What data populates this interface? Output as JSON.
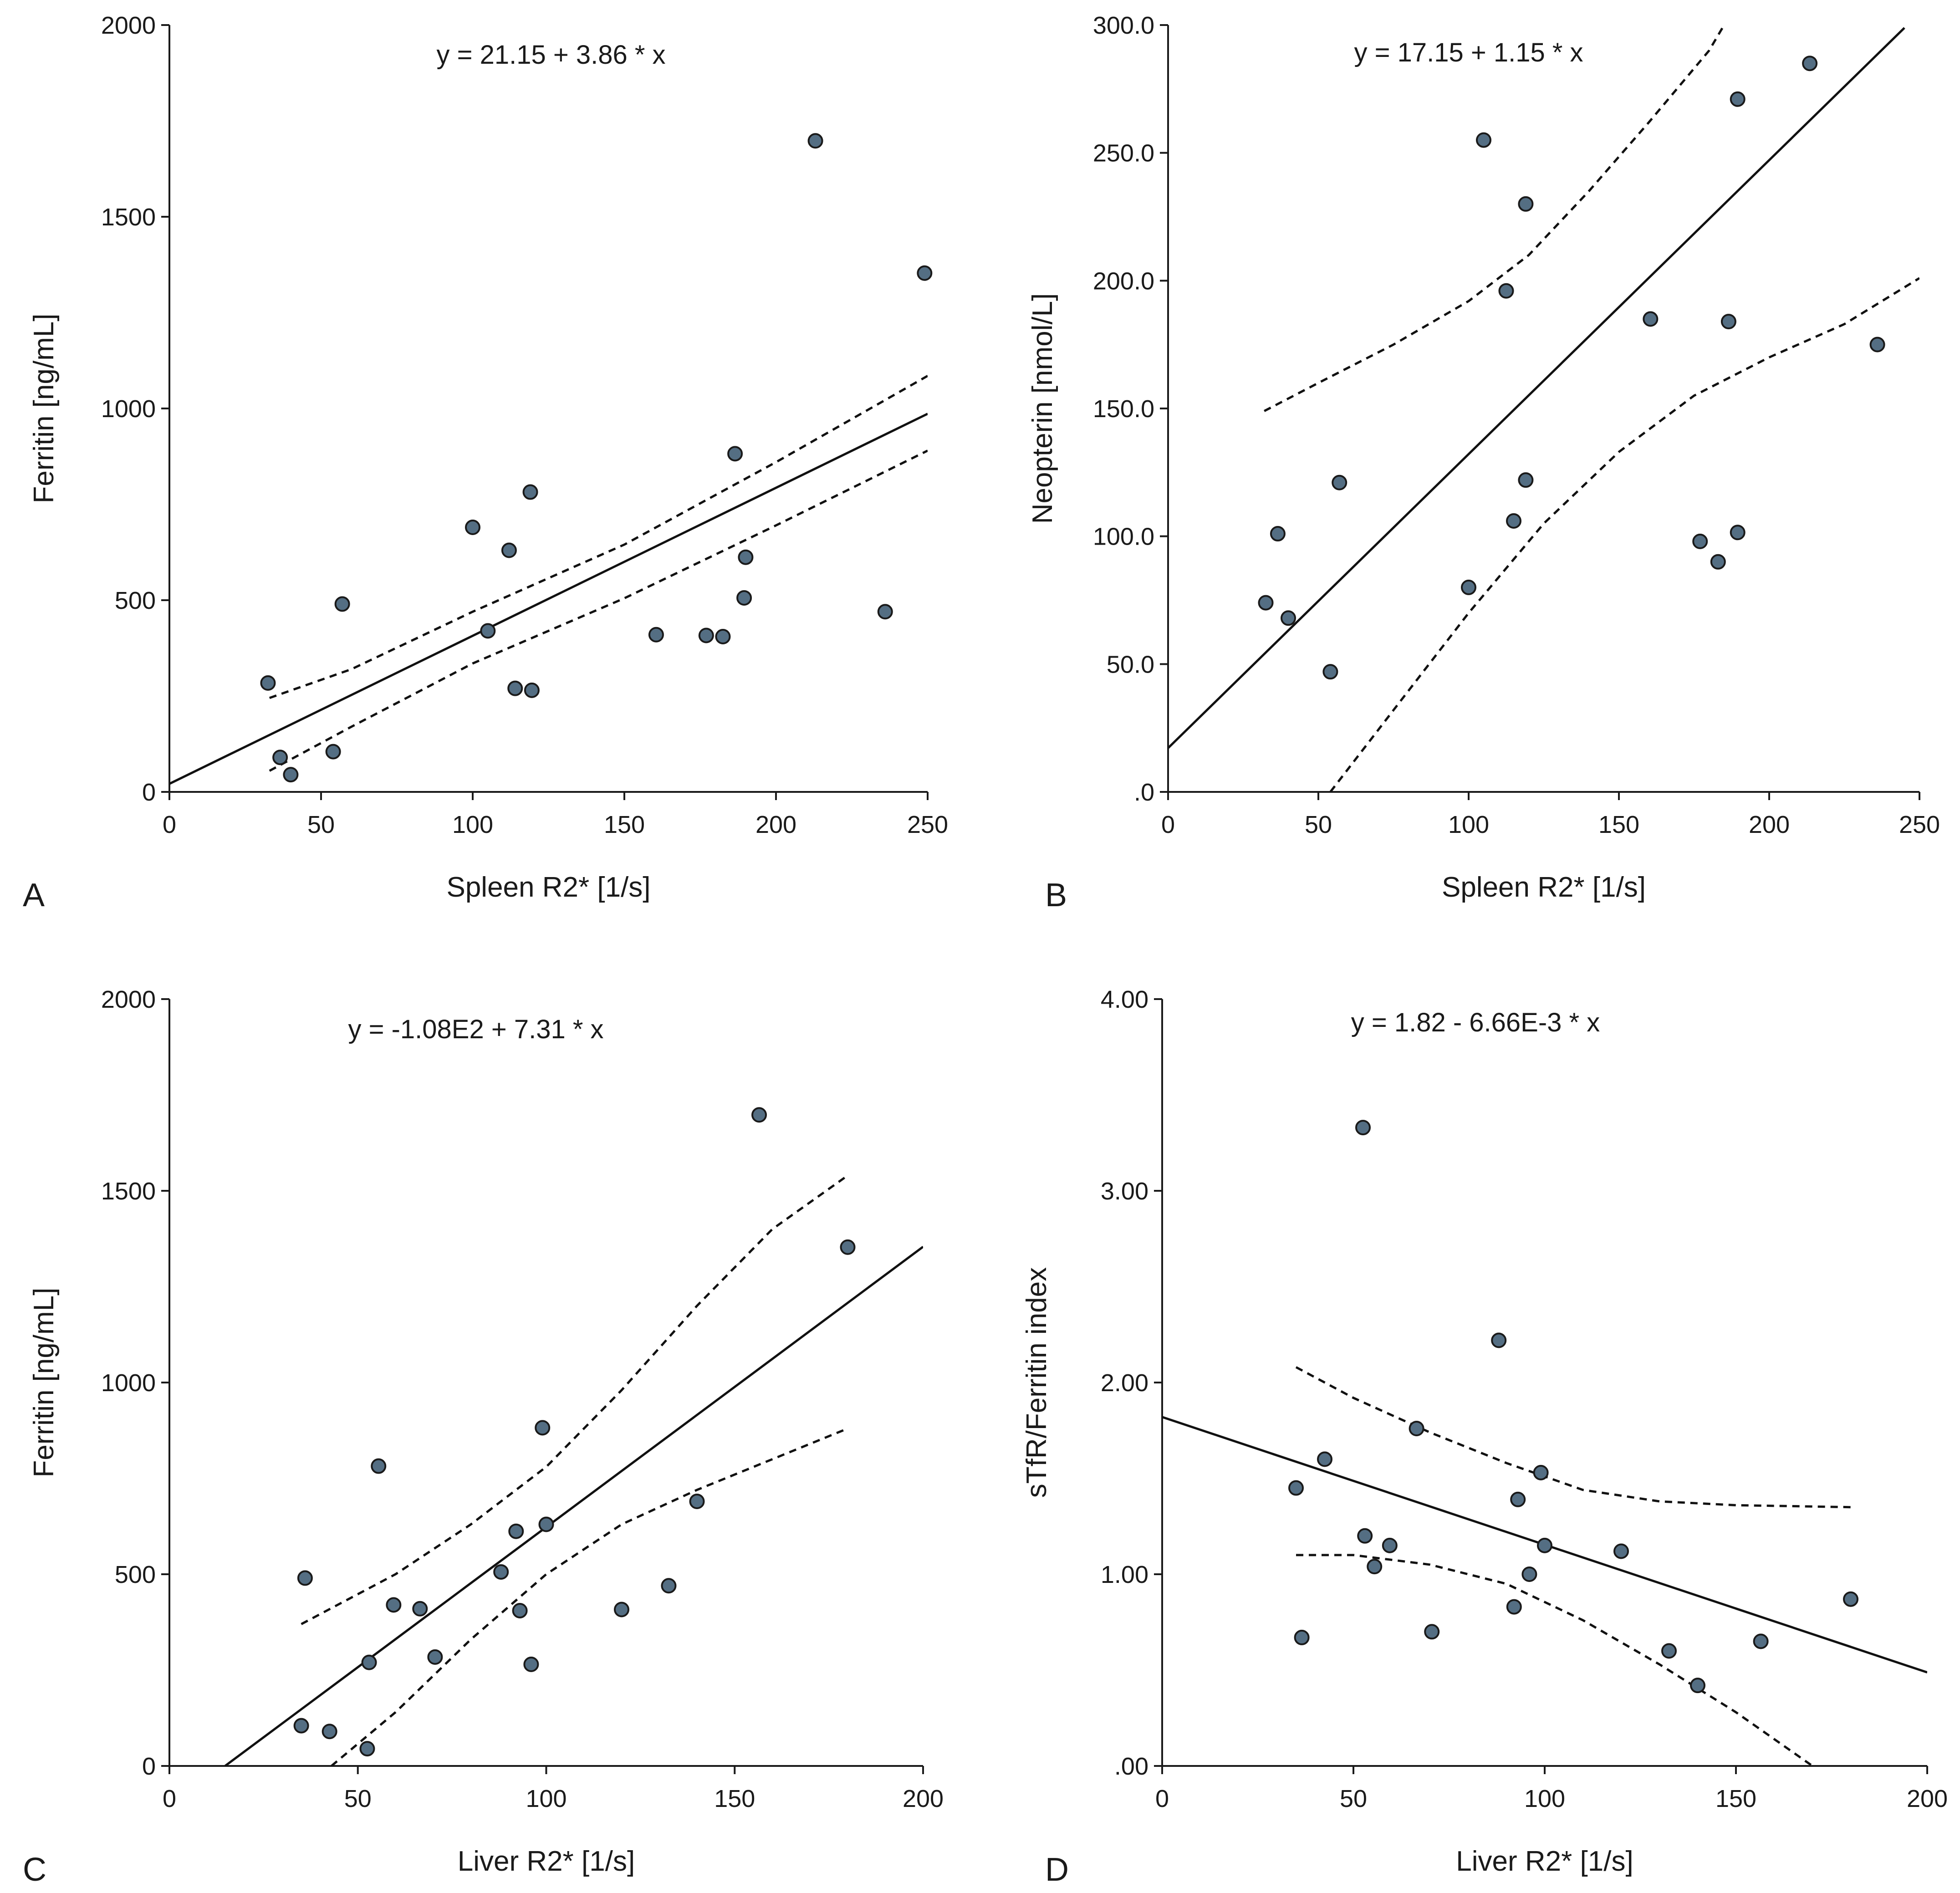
{
  "chart_data": [
    {
      "type": "scatter",
      "panel_letter": "A",
      "equation": "y = 21.15 + 3.86 * x",
      "xlabel": "Spleen R2* [1/s]",
      "ylabel": "Ferritin [ng/mL]",
      "xlim": [
        0,
        250
      ],
      "ylim": [
        0,
        2000
      ],
      "x_ticks": [
        0,
        50,
        100,
        150,
        200,
        250
      ],
      "x_tick_labels": [
        "0",
        "50",
        "100",
        "150",
        "200",
        "250"
      ],
      "y_ticks": [
        0,
        500,
        1000,
        1500,
        2000
      ],
      "y_tick_labels": [
        "0",
        "500",
        "1000",
        "1500",
        "2000"
      ],
      "grid": false,
      "point_color": "#546e83",
      "points": [
        [
          32.5,
          284
        ],
        [
          36.5,
          90
        ],
        [
          40,
          45
        ],
        [
          54,
          105
        ],
        [
          57,
          490
        ],
        [
          100,
          690
        ],
        [
          105,
          420
        ],
        [
          112,
          630
        ],
        [
          114,
          270
        ],
        [
          119,
          782
        ],
        [
          119.5,
          265
        ],
        [
          160.5,
          410
        ],
        [
          177,
          408
        ],
        [
          182.5,
          405
        ],
        [
          186.5,
          882
        ],
        [
          189.5,
          506
        ],
        [
          190,
          612
        ],
        [
          213,
          1698
        ],
        [
          236,
          470
        ],
        [
          249,
          1353
        ]
      ],
      "fit": {
        "intercept": 21.15,
        "slope": 3.86,
        "x_range": [
          0,
          250
        ]
      },
      "ci_lower": [
        [
          33,
          55
        ],
        [
          60,
          170
        ],
        [
          100,
          335
        ],
        [
          150,
          505
        ],
        [
          200,
          695
        ],
        [
          250,
          890
        ]
      ],
      "ci_upper": [
        [
          33,
          245
        ],
        [
          60,
          320
        ],
        [
          100,
          470
        ],
        [
          150,
          645
        ],
        [
          200,
          860
        ],
        [
          250,
          1085
        ]
      ]
    },
    {
      "type": "scatter",
      "panel_letter": "B",
      "equation": "y = 17.15 + 1.15 * x",
      "xlabel": "Spleen R2* [1/s]",
      "ylabel": "Neopterin [nmol/L]",
      "xlim": [
        0,
        250
      ],
      "ylim": [
        0,
        300
      ],
      "x_ticks": [
        0,
        50,
        100,
        150,
        200,
        250
      ],
      "x_tick_labels": [
        "0",
        "50",
        "100",
        "150",
        "200",
        "250"
      ],
      "y_ticks": [
        0,
        50,
        100,
        150,
        200,
        250,
        300
      ],
      "y_tick_labels": [
        ".0",
        "50.0",
        "100.0",
        "150.0",
        "200.0",
        "250.0",
        "300.0"
      ],
      "grid": false,
      "point_color": "#546e83",
      "points": [
        [
          32.5,
          74
        ],
        [
          36.5,
          101
        ],
        [
          40,
          68
        ],
        [
          54,
          47
        ],
        [
          57,
          121
        ],
        [
          100,
          80
        ],
        [
          105,
          255
        ],
        [
          112.5,
          196
        ],
        [
          115,
          106
        ],
        [
          119,
          122
        ],
        [
          119,
          230
        ],
        [
          160.5,
          185
        ],
        [
          177,
          98
        ],
        [
          183,
          90
        ],
        [
          186.5,
          184
        ],
        [
          189.5,
          101.5
        ],
        [
          189.5,
          271
        ],
        [
          213.5,
          285
        ],
        [
          236,
          175
        ]
      ],
      "fit": {
        "intercept": 17.15,
        "slope": 1.15,
        "x_range": [
          0,
          245
        ]
      },
      "ci_lower": [
        [
          54,
          0
        ],
        [
          75,
          32
        ],
        [
          100,
          70
        ],
        [
          125,
          105
        ],
        [
          150,
          133
        ],
        [
          175,
          155
        ],
        [
          200,
          170
        ],
        [
          225,
          183
        ],
        [
          250,
          201
        ]
      ],
      "ci_upper": [
        [
          32,
          149
        ],
        [
          50,
          160
        ],
        [
          75,
          175
        ],
        [
          100,
          192
        ],
        [
          120,
          210
        ],
        [
          140,
          235
        ],
        [
          160,
          262
        ],
        [
          180,
          290
        ],
        [
          185,
          300
        ]
      ]
    },
    {
      "type": "scatter",
      "panel_letter": "C",
      "equation": "y = -1.08E2 + 7.31 * x",
      "xlabel": "Liver R2* [1/s]",
      "ylabel": "Ferritin [ng/mL]",
      "xlim": [
        0,
        200
      ],
      "ylim": [
        0,
        2000
      ],
      "x_ticks": [
        0,
        50,
        100,
        150,
        200
      ],
      "x_tick_labels": [
        "0",
        "50",
        "100",
        "150",
        "200"
      ],
      "y_ticks": [
        0,
        500,
        1000,
        1500,
        2000
      ],
      "y_tick_labels": [
        "0",
        "500",
        "1000",
        "1500",
        "2000"
      ],
      "grid": false,
      "point_color": "#546e83",
      "points": [
        [
          35,
          105
        ],
        [
          36,
          490
        ],
        [
          42.5,
          90
        ],
        [
          52.5,
          45
        ],
        [
          53,
          270
        ],
        [
          55.5,
          782
        ],
        [
          59.5,
          420
        ],
        [
          66.5,
          410
        ],
        [
          70.5,
          284
        ],
        [
          88,
          506
        ],
        [
          92,
          612
        ],
        [
          93,
          405
        ],
        [
          96,
          265
        ],
        [
          99,
          882
        ],
        [
          100,
          630
        ],
        [
          120,
          408
        ],
        [
          132.5,
          470
        ],
        [
          140,
          690
        ],
        [
          156.5,
          1698
        ],
        [
          180,
          1353
        ]
      ],
      "fit": {
        "intercept": -108,
        "slope": 7.31,
        "x_range": [
          14.8,
          200
        ]
      },
      "ci_lower": [
        [
          43,
          0
        ],
        [
          60,
          140
        ],
        [
          80,
          330
        ],
        [
          100,
          500
        ],
        [
          120,
          630
        ],
        [
          140,
          720
        ],
        [
          160,
          800
        ],
        [
          180,
          880
        ]
      ],
      "ci_upper": [
        [
          35,
          370
        ],
        [
          60,
          500
        ],
        [
          80,
          630
        ],
        [
          100,
          780
        ],
        [
          120,
          980
        ],
        [
          140,
          1200
        ],
        [
          160,
          1400
        ],
        [
          180,
          1540
        ]
      ]
    },
    {
      "type": "scatter",
      "panel_letter": "D",
      "equation": "y = 1.82 - 6.66E-3 * x",
      "xlabel": "Liver R2* [1/s]",
      "ylabel": "sTfR/Ferritin index",
      "xlim": [
        0,
        200
      ],
      "ylim": [
        0,
        4
      ],
      "x_ticks": [
        0,
        50,
        100,
        150,
        200
      ],
      "x_tick_labels": [
        "0",
        "50",
        "100",
        "150",
        "200"
      ],
      "y_ticks": [
        0,
        1,
        2,
        3,
        4
      ],
      "y_tick_labels": [
        ".00",
        "1.00",
        "2.00",
        "3.00",
        "4.00"
      ],
      "grid": false,
      "point_color": "#546e83",
      "points": [
        [
          35,
          1.45
        ],
        [
          36.5,
          0.67
        ],
        [
          42.5,
          1.6
        ],
        [
          52.5,
          3.33
        ],
        [
          53,
          1.2
        ],
        [
          55.5,
          1.04
        ],
        [
          59.5,
          1.15
        ],
        [
          66.5,
          1.76
        ],
        [
          70.5,
          0.7
        ],
        [
          88,
          2.22
        ],
        [
          92,
          0.83
        ],
        [
          93,
          1.39
        ],
        [
          96,
          1.0
        ],
        [
          99,
          1.53
        ],
        [
          100,
          1.15
        ],
        [
          120,
          1.12
        ],
        [
          132.5,
          0.6
        ],
        [
          140,
          0.42
        ],
        [
          156.5,
          0.65
        ],
        [
          180,
          0.87
        ]
      ],
      "fit": {
        "intercept": 1.82,
        "slope": -0.00666,
        "x_range": [
          0,
          200
        ]
      },
      "ci_lower": [
        [
          35,
          1.1
        ],
        [
          50,
          1.1
        ],
        [
          70,
          1.05
        ],
        [
          90,
          0.95
        ],
        [
          110,
          0.76
        ],
        [
          130,
          0.53
        ],
        [
          150,
          0.28
        ],
        [
          170,
          0.0
        ]
      ],
      "ci_upper": [
        [
          35,
          2.08
        ],
        [
          50,
          1.92
        ],
        [
          70,
          1.74
        ],
        [
          90,
          1.58
        ],
        [
          110,
          1.44
        ],
        [
          130,
          1.38
        ],
        [
          150,
          1.36
        ],
        [
          180,
          1.35
        ]
      ]
    }
  ]
}
